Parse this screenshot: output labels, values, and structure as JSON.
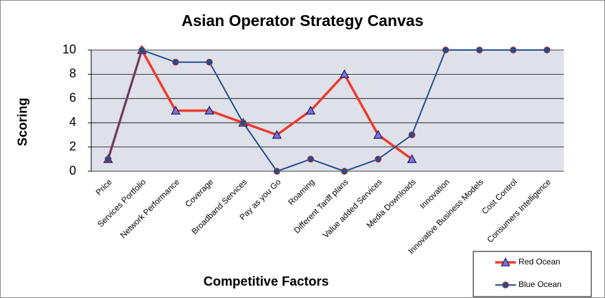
{
  "chart_data": {
    "type": "line",
    "title": "Asian Operator Strategy Canvas",
    "x_label": "Competitive Factors",
    "y_label": "Scoring",
    "categories": [
      "Price",
      "Services Portfolio",
      "Network Performance",
      "Coverage",
      "Broadband Services",
      "Pay as you Go",
      "Roaming",
      "Different Tariff plans",
      "Value added Services",
      "Media Downloads",
      "Innovation",
      "Innovative Business Models",
      "Cost Control",
      "Consumers Intelligence"
    ],
    "series": [
      {
        "name": "Red Ocean",
        "color": "#ee3a2a",
        "marker": "triangle",
        "values": [
          1,
          10,
          5,
          5,
          4,
          3,
          5,
          8,
          3,
          1,
          null,
          null,
          null,
          null
        ]
      },
      {
        "name": "Blue Ocean",
        "color": "#1f4e8c",
        "marker": "circle",
        "values": [
          1,
          10,
          9,
          9,
          4,
          0,
          1,
          0,
          1,
          3,
          10,
          10,
          10,
          10
        ]
      }
    ],
    "ylim": [
      0,
      10
    ],
    "yticks": [
      0,
      2,
      4,
      6,
      8,
      10
    ],
    "grid": true,
    "legend": "bottom-right"
  }
}
